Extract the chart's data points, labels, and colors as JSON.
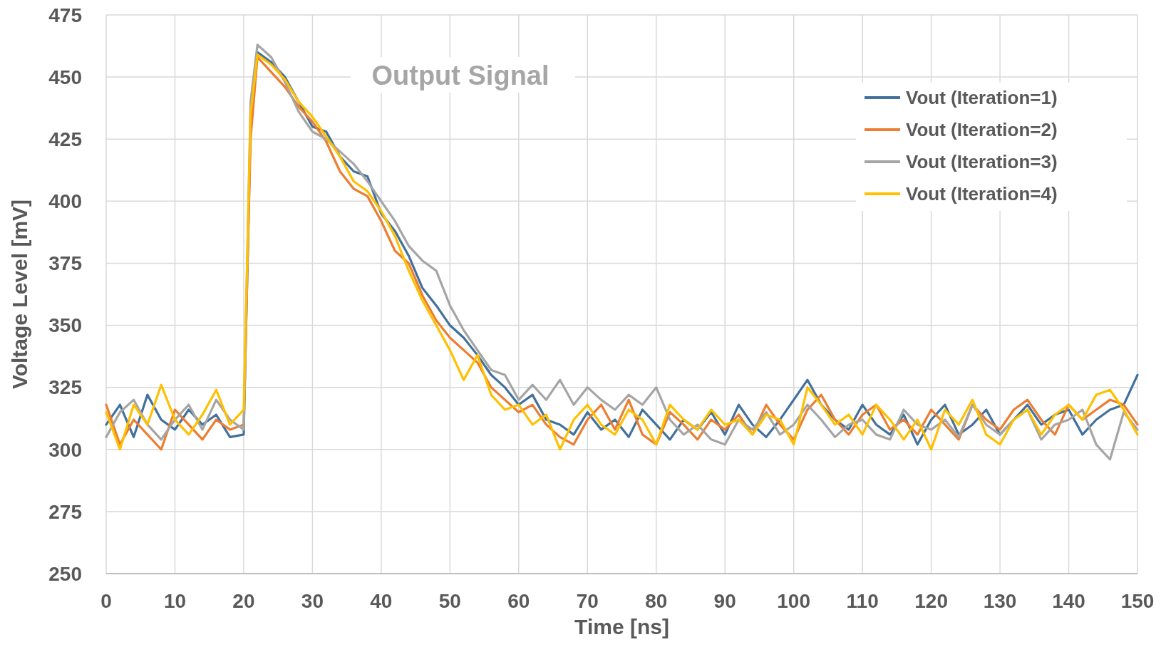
{
  "chart_data": {
    "type": "line",
    "title": "Output Signal",
    "xlabel": "Time [ns]",
    "ylabel": "Voltage Level [mV]",
    "x": [
      0,
      2,
      4,
      6,
      8,
      10,
      12,
      14,
      16,
      18,
      20,
      21,
      22,
      24,
      26,
      28,
      30,
      32,
      34,
      36,
      38,
      40,
      42,
      44,
      46,
      48,
      50,
      52,
      54,
      56,
      58,
      60,
      62,
      64,
      66,
      68,
      70,
      72,
      74,
      76,
      78,
      80,
      82,
      84,
      86,
      88,
      90,
      92,
      94,
      96,
      98,
      100,
      102,
      104,
      106,
      108,
      110,
      112,
      114,
      116,
      118,
      120,
      122,
      124,
      126,
      128,
      130,
      132,
      134,
      136,
      138,
      140,
      142,
      144,
      146,
      148,
      150
    ],
    "xlim": [
      0,
      150
    ],
    "xticks": [
      0,
      10,
      20,
      30,
      40,
      50,
      60,
      70,
      80,
      90,
      100,
      110,
      120,
      130,
      140,
      150
    ],
    "ylim": [
      250,
      475
    ],
    "yticks": [
      250,
      275,
      300,
      325,
      350,
      375,
      400,
      425,
      450,
      475
    ],
    "grid": true,
    "legend": "top right",
    "line_style": "solid",
    "marker": "none",
    "series": [
      {
        "name": "Vout (Iteration=1)",
        "color": "#41719c",
        "values": [
          310,
          318,
          305,
          322,
          312,
          308,
          316,
          310,
          314,
          305,
          306,
          430,
          460,
          456,
          450,
          440,
          430,
          428,
          418,
          412,
          410,
          395,
          388,
          378,
          365,
          358,
          350,
          345,
          338,
          330,
          325,
          318,
          322,
          312,
          310,
          306,
          315,
          308,
          312,
          305,
          316,
          310,
          304,
          312,
          308,
          315,
          306,
          318,
          310,
          305,
          312,
          320,
          328,
          318,
          312,
          308,
          318,
          310,
          306,
          314,
          302,
          312,
          318,
          306,
          310,
          316,
          306,
          312,
          318,
          310,
          314,
          316,
          306,
          312,
          316,
          318,
          330
        ]
      },
      {
        "name": "Vout (Iteration=2)",
        "color": "#ed7d31",
        "values": [
          318,
          302,
          312,
          306,
          300,
          316,
          310,
          304,
          312,
          308,
          310,
          425,
          458,
          452,
          446,
          438,
          432,
          424,
          412,
          405,
          402,
          392,
          380,
          375,
          362,
          352,
          345,
          340,
          335,
          325,
          320,
          315,
          318,
          310,
          305,
          302,
          312,
          318,
          308,
          320,
          306,
          302,
          315,
          310,
          304,
          312,
          308,
          314,
          306,
          318,
          310,
          304,
          316,
          322,
          312,
          306,
          314,
          318,
          308,
          312,
          306,
          316,
          310,
          304,
          318,
          312,
          308,
          316,
          320,
          312,
          306,
          318,
          312,
          316,
          320,
          318,
          310
        ]
      },
      {
        "name": "Vout (Iteration=3)",
        "color": "#a5a5a5",
        "values": [
          305,
          315,
          320,
          310,
          304,
          312,
          318,
          308,
          320,
          312,
          308,
          440,
          463,
          458,
          448,
          436,
          428,
          425,
          420,
          415,
          408,
          400,
          392,
          382,
          376,
          372,
          358,
          348,
          340,
          332,
          330,
          320,
          326,
          320,
          328,
          318,
          325,
          320,
          316,
          322,
          318,
          325,
          312,
          306,
          310,
          304,
          302,
          312,
          308,
          315,
          306,
          310,
          318,
          312,
          305,
          310,
          312,
          306,
          304,
          316,
          310,
          308,
          312,
          305,
          318,
          310,
          306,
          312,
          316,
          304,
          310,
          312,
          316,
          302,
          296,
          315,
          308
        ]
      },
      {
        "name": "Vout (Iteration=4)",
        "color": "#ffc000",
        "values": [
          315,
          300,
          318,
          310,
          326,
          312,
          306,
          314,
          324,
          310,
          316,
          435,
          459,
          455,
          449,
          440,
          434,
          426,
          418,
          408,
          404,
          396,
          386,
          372,
          360,
          350,
          340,
          328,
          338,
          322,
          316,
          318,
          310,
          314,
          300,
          312,
          318,
          310,
          306,
          316,
          312,
          302,
          318,
          312,
          308,
          316,
          310,
          312,
          306,
          314,
          312,
          302,
          325,
          318,
          310,
          314,
          306,
          318,
          312,
          304,
          312,
          300,
          316,
          310,
          320,
          306,
          302,
          312,
          316,
          306,
          314,
          318,
          312,
          322,
          324,
          316,
          306
        ]
      }
    ]
  }
}
